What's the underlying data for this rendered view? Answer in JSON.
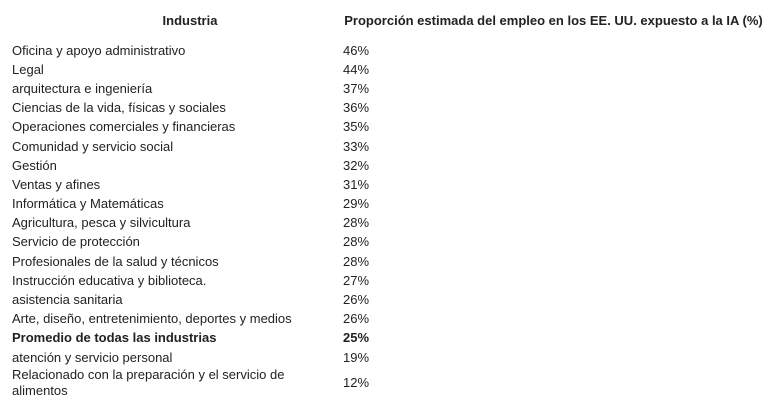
{
  "table": {
    "header": [
      "Industria",
      "Proporción estimada del empleo en los EE. UU. expuesto a la IA (%)"
    ],
    "rows": [
      {
        "industry": "Oficina y apoyo administrativo",
        "share": "46%"
      },
      {
        "industry": "Legal",
        "share": "44%"
      },
      {
        "industry": "arquitectura e ingeniería",
        "share": "37%"
      },
      {
        "industry": "Ciencias de la vida, físicas y sociales",
        "share": "36%"
      },
      {
        "industry": "Operaciones comerciales y financieras",
        "share": "35%"
      },
      {
        "industry": "Comunidad y servicio social",
        "share": "33%"
      },
      {
        "industry": "Gestión",
        "share": "32%"
      },
      {
        "industry": "Ventas y afines",
        "share": "31%"
      },
      {
        "industry": "Informática y Matemáticas",
        "share": "29%"
      },
      {
        "industry": "Agricultura, pesca y silvicultura",
        "share": "28%"
      },
      {
        "industry": "Servicio de protección",
        "share": "28%"
      },
      {
        "industry": "Profesionales de la salud y técnicos",
        "share": "28%"
      },
      {
        "industry": "Instrucción educativa y biblioteca.",
        "share": "27%"
      },
      {
        "industry": "asistencia sanitaria",
        "share": "26%"
      },
      {
        "industry": "Arte, diseño, entretenimiento, deportes y medios",
        "share": "26%"
      },
      {
        "industry": "Promedio de todas las industrias",
        "share": "25%",
        "bold": true
      },
      {
        "industry": "atención y servicio personal",
        "share": "19%"
      },
      {
        "industry": "Relacionado con la preparación y el servicio de alimentos",
        "share": "12%"
      }
    ]
  }
}
